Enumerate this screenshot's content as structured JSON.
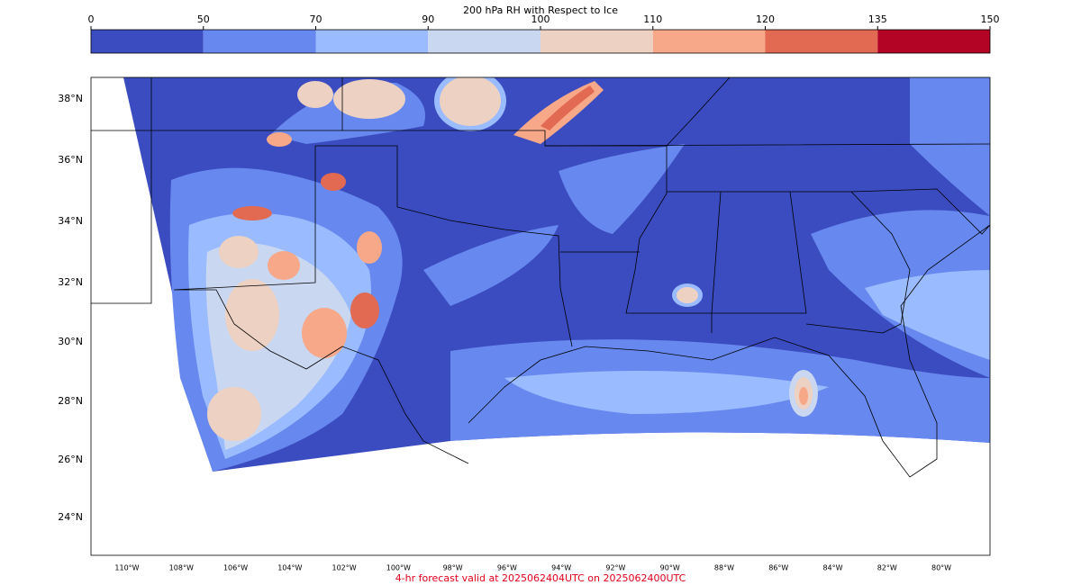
{
  "colorbar": {
    "title": "200 hPa RH with Respect to Ice",
    "ticks": [
      0,
      50,
      70,
      90,
      100,
      110,
      120,
      135,
      150
    ],
    "colors": [
      "#3b4cc0",
      "#6788ee",
      "#9abbff",
      "#c9d7f0",
      "#edd1c2",
      "#f7a889",
      "#e26952",
      "#b40426"
    ]
  },
  "map": {
    "lat_labels": [
      "38°N",
      "36°N",
      "34°N",
      "32°N",
      "30°N",
      "28°N",
      "26°N",
      "24°N"
    ],
    "lon_labels": [
      "110°W",
      "108°W",
      "106°W",
      "104°W",
      "102°W",
      "100°W",
      "98°W",
      "96°W",
      "94°W",
      "92°W",
      "90°W",
      "88°W",
      "86°W",
      "84°W",
      "82°W",
      "80°W"
    ]
  },
  "footer": "4-hr forecast valid at 2025062404UTC on 2025062400UTC"
}
